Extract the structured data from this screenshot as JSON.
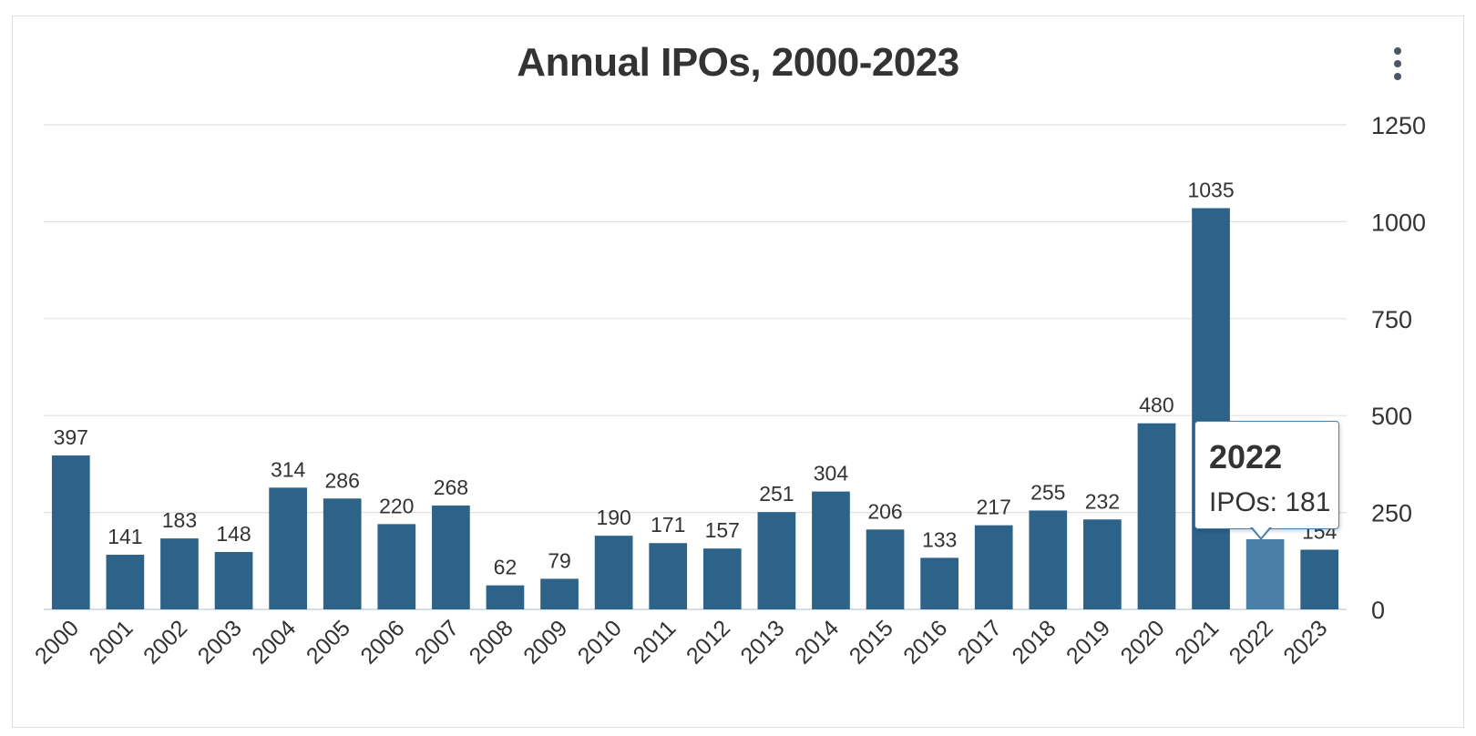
{
  "chart_data": {
    "type": "bar",
    "title": "Annual IPOs, 2000-2023",
    "categories": [
      "2000",
      "2001",
      "2002",
      "2003",
      "2004",
      "2005",
      "2006",
      "2007",
      "2008",
      "2009",
      "2010",
      "2011",
      "2012",
      "2013",
      "2014",
      "2015",
      "2016",
      "2017",
      "2018",
      "2019",
      "2020",
      "2021",
      "2022",
      "2023"
    ],
    "values": [
      397,
      141,
      183,
      148,
      314,
      286,
      220,
      268,
      62,
      79,
      190,
      171,
      157,
      251,
      304,
      206,
      133,
      217,
      255,
      232,
      480,
      1035,
      181,
      154
    ],
    "ylim": [
      0,
      1250
    ],
    "yticks": [
      0,
      250,
      500,
      750,
      1000,
      1250
    ],
    "grid": true,
    "yaxis_side": "right",
    "xlabel": "",
    "ylabel": "",
    "highlighted_category": "2022",
    "colors": {
      "bar": "#2d6389",
      "bar_highlight": "#4c7fa8",
      "grid": "#e0e0e0",
      "text": "#333333"
    }
  },
  "tooltip": {
    "title": "2022",
    "line": "IPOs: 181"
  },
  "menu": {
    "icon": "kebab-menu-icon"
  }
}
